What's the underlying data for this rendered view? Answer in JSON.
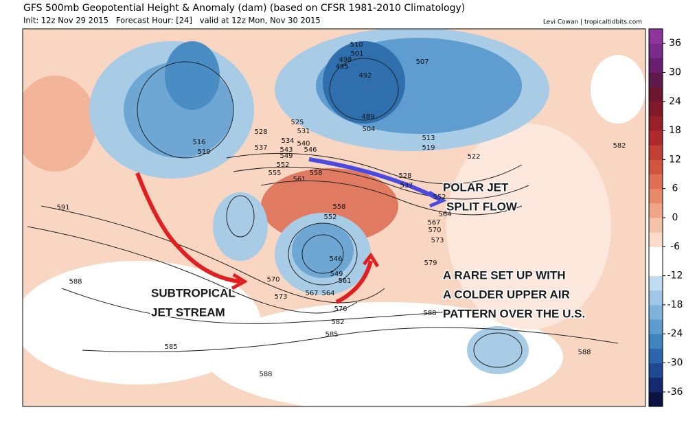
{
  "header": {
    "title": "GFS 500mb Geopotential Height & Anomaly (dam) (based on CFSR 1981-2010 Climatology)",
    "init": "Init: 12z Nov 29 2015   Forecast Hour: [24]   valid at 12z Mon, Nov 30 2015",
    "credit": "Levi Cowan | tropicaltidbits.com"
  },
  "annotations": {
    "polar_jet": "POLAR JET",
    "split_flow": "SPLIT FLOW",
    "subtropical_1": "SUBTROPICAL",
    "subtropical_2": "JET STREAM",
    "rare_1": "A RARE SET UP WITH",
    "rare_2": "A COLDER UPPER AIR",
    "rare_3": "PATTERN OVER THE U.S."
  },
  "contour_labels": [
    "516",
    "519",
    "528",
    "537",
    "525",
    "531",
    "534",
    "540",
    "543",
    "546",
    "549",
    "552",
    "555",
    "561",
    "558",
    "510",
    "501",
    "498",
    "495",
    "492",
    "489",
    "504",
    "507",
    "513",
    "519",
    "522",
    "528",
    "537",
    "552",
    "564",
    "567",
    "570",
    "573",
    "558",
    "552",
    "546",
    "549",
    "561",
    "564",
    "567",
    "570",
    "573",
    "576",
    "582",
    "585",
    "579",
    "588",
    "591",
    "588",
    "585",
    "588",
    "582",
    "588"
  ],
  "colorbar": {
    "lim": [
      -39,
      39
    ],
    "ticks": [
      36,
      30,
      24,
      18,
      12,
      6,
      0,
      -6,
      -12,
      -18,
      -24,
      -30,
      -36
    ],
    "colors": [
      "#0d1340",
      "#152a6e",
      "#1f4a92",
      "#2b67aa",
      "#3f84bf",
      "#5e9ccf",
      "#7fb3dc",
      "#a0c8e6",
      "#c2dcef",
      "#ffffff",
      "#ffffff",
      "#fbdccb",
      "#f6c2a8",
      "#f0a587",
      "#e88a6a",
      "#de6f52",
      "#d2553f",
      "#c33e33",
      "#ae2a2c",
      "#982028",
      "#811a28",
      "#6e1630",
      "#5e1a4a",
      "#6a1f6e",
      "#7a2a8a",
      "#8e359d"
    ]
  }
}
